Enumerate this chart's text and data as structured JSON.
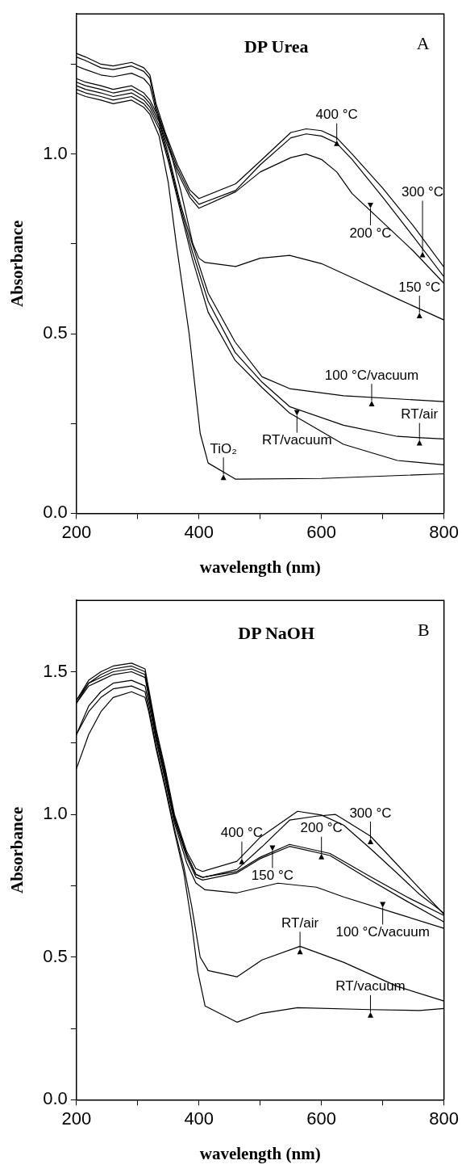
{
  "chart_data": [
    {
      "type": "line",
      "title": "DP Urea",
      "xlabel": "wavelength (nm)",
      "ylabel": "Absorbance",
      "xlim": [
        200,
        800
      ],
      "ylim": [
        0,
        1.39
      ],
      "xticks": [
        200,
        {
          "value": 300,
          "label": null
        },
        400,
        {
          "value": 500,
          "label": null
        },
        600,
        {
          "value": 700,
          "label": null
        },
        800
      ],
      "yticks": [
        {
          "value": 0,
          "label": "0.0"
        },
        {
          "value": 0.25,
          "label": null
        },
        {
          "value": 0.5,
          "label": "0.5"
        },
        {
          "value": 0.75,
          "label": null
        },
        {
          "value": 1,
          "label": "1.0"
        },
        {
          "value": 1.25,
          "label": null
        }
      ],
      "grid": false,
      "legend": false,
      "marker": "none",
      "line_style": "solid",
      "series": [
        {
          "color": "#000000",
          "x": [
            200,
            215,
            240,
            260,
            290,
            310,
            320,
            330,
            345,
            365,
            385,
            400,
            460,
            500,
            550,
            575,
            600,
            625,
            650,
            700,
            750,
            800
          ],
          "values": [
            1.28,
            1.27,
            1.25,
            1.245,
            1.255,
            1.24,
            1.22,
            1.14,
            1.06,
            0.97,
            0.9,
            0.876,
            0.917,
            0.98,
            1.06,
            1.07,
            1.065,
            1.045,
            1.0,
            0.905,
            0.8,
            0.685
          ]
        },
        {
          "color": "#000000",
          "x": [
            200,
            215,
            240,
            260,
            290,
            310,
            320,
            330,
            345,
            365,
            385,
            400,
            460,
            500,
            550,
            575,
            600,
            625,
            650,
            700,
            750,
            800
          ],
          "values": [
            1.27,
            1.26,
            1.24,
            1.235,
            1.245,
            1.23,
            1.21,
            1.13,
            1.05,
            0.96,
            0.89,
            0.86,
            0.899,
            0.97,
            1.045,
            1.056,
            1.05,
            1.03,
            0.985,
            0.88,
            0.77,
            0.658
          ]
        },
        {
          "color": "#000000",
          "x": [
            200,
            215,
            240,
            260,
            290,
            310,
            320,
            330,
            345,
            365,
            385,
            400,
            460,
            500,
            550,
            575,
            600,
            625,
            650,
            700,
            750,
            800
          ],
          "values": [
            1.245,
            1.235,
            1.22,
            1.215,
            1.225,
            1.21,
            1.19,
            1.12,
            1.04,
            0.95,
            0.88,
            0.849,
            0.895,
            0.95,
            0.99,
            1.0,
            0.985,
            0.95,
            0.89,
            0.81,
            0.73,
            0.64
          ]
        },
        {
          "color": "#000000",
          "x": [
            200,
            215,
            240,
            260,
            290,
            310,
            320,
            335,
            350,
            370,
            390,
            400,
            410,
            460,
            500,
            548,
            600,
            654,
            724,
            800
          ],
          "values": [
            1.21,
            1.2,
            1.19,
            1.18,
            1.19,
            1.17,
            1.15,
            1.1,
            1.03,
            0.9,
            0.75,
            0.71,
            0.698,
            0.687,
            0.71,
            0.718,
            0.695,
            0.653,
            0.597,
            0.538
          ]
        },
        {
          "color": "#000000",
          "x": [
            200,
            215,
            240,
            260,
            290,
            310,
            320,
            335,
            350,
            370,
            389,
            415,
            459,
            503,
            548,
            636,
            800
          ],
          "values": [
            1.2,
            1.19,
            1.18,
            1.17,
            1.18,
            1.16,
            1.14,
            1.09,
            1.0,
            0.86,
            0.75,
            0.613,
            0.477,
            0.38,
            0.347,
            0.327,
            0.311
          ]
        },
        {
          "color": "#000000",
          "x": [
            200,
            215,
            240,
            260,
            290,
            310,
            320,
            335,
            350,
            370,
            389,
            415,
            459,
            503,
            548,
            636,
            724,
            800
          ],
          "values": [
            1.19,
            1.18,
            1.17,
            1.16,
            1.17,
            1.15,
            1.13,
            1.08,
            0.99,
            0.85,
            0.73,
            0.59,
            0.448,
            0.365,
            0.297,
            0.245,
            0.214,
            0.207
          ]
        },
        {
          "color": "#000000",
          "x": [
            200,
            215,
            240,
            260,
            290,
            310,
            320,
            335,
            350,
            370,
            389,
            415,
            459,
            503,
            548,
            636,
            724,
            800
          ],
          "values": [
            1.18,
            1.17,
            1.16,
            1.15,
            1.16,
            1.14,
            1.12,
            1.07,
            0.98,
            0.84,
            0.71,
            0.56,
            0.426,
            0.35,
            0.279,
            0.192,
            0.147,
            0.135
          ]
        },
        {
          "color": "#000000",
          "x": [
            200,
            215,
            240,
            260,
            290,
            310,
            320,
            335,
            350,
            363,
            384,
            402,
            415,
            460,
            600,
            800
          ],
          "values": [
            1.17,
            1.16,
            1.15,
            1.14,
            1.15,
            1.13,
            1.11,
            1.05,
            0.92,
            0.75,
            0.5,
            0.223,
            0.14,
            0.095,
            0.097,
            0.11
          ]
        }
      ],
      "annotations": [
        "A",
        {
          "text": "400 °C",
          "x": 625,
          "y": 1.045
        },
        {
          "text": "300 °C",
          "x": 765,
          "y": 0.735
        },
        {
          "text": "200 °C",
          "x": 680,
          "y": 0.842
        },
        {
          "text": "150 °C",
          "x": 760,
          "y": 0.565
        },
        {
          "text": "100 °C/vacuum",
          "x": 682,
          "y": 0.32
        },
        {
          "text": "RT/air",
          "x": 760,
          "y": 0.211
        },
        {
          "text": "RT/vacuum",
          "x": 560,
          "y": 0.265
        },
        {
          "text": "TiO₂",
          "x": 440,
          "y": 0.115
        }
      ]
    },
    {
      "type": "line",
      "title": "DP NaOH",
      "xlabel": "wavelength (nm)",
      "ylabel": "Absorbance",
      "xlim": [
        200,
        800
      ],
      "ylim": [
        0,
        1.75
      ],
      "xticks": [
        200,
        {
          "value": 300,
          "label": null
        },
        400,
        {
          "value": 500,
          "label": null
        },
        600,
        {
          "value": 700,
          "label": null
        },
        800
      ],
      "yticks": [
        {
          "value": 0,
          "label": "0.0"
        },
        {
          "value": 0.25,
          "label": null
        },
        {
          "value": 0.5,
          "label": "0.5"
        },
        {
          "value": 0.75,
          "label": null
        },
        {
          "value": 1,
          "label": "1.0"
        },
        {
          "value": 1.25,
          "label": null
        },
        {
          "value": 1.5,
          "label": "1.5"
        }
      ],
      "grid": false,
      "legend": false,
      "marker": "none",
      "line_style": "solid",
      "series": [
        {
          "color": "#000000",
          "x": [
            200,
            220,
            240,
            260,
            290,
            312,
            318,
            330,
            345,
            360,
            380,
            395,
            406,
            462,
            500,
            561,
            600,
            636,
            680,
            724,
            760,
            800
          ],
          "values": [
            1.4,
            1.47,
            1.5,
            1.52,
            1.53,
            1.51,
            1.44,
            1.3,
            1.16,
            1.0,
            0.87,
            0.81,
            0.8,
            0.836,
            0.92,
            1.011,
            0.998,
            0.963,
            0.88,
            0.793,
            0.72,
            0.654
          ]
        },
        {
          "color": "#000000",
          "x": [
            200,
            220,
            240,
            260,
            290,
            312,
            318,
            330,
            345,
            360,
            380,
            395,
            406,
            462,
            503,
            548,
            592,
            623,
            680,
            746,
            800
          ],
          "values": [
            1.39,
            1.46,
            1.49,
            1.51,
            1.52,
            1.5,
            1.43,
            1.29,
            1.15,
            0.99,
            0.86,
            0.79,
            0.779,
            0.807,
            0.887,
            0.98,
            0.994,
            1.0,
            0.924,
            0.773,
            0.65
          ]
        },
        {
          "color": "#000000",
          "x": [
            200,
            220,
            240,
            260,
            290,
            312,
            318,
            330,
            345,
            360,
            380,
            395,
            406,
            462,
            500,
            548,
            614,
            680,
            740,
            800
          ],
          "values": [
            1.4,
            1.46,
            1.48,
            1.5,
            1.51,
            1.49,
            1.42,
            1.28,
            1.14,
            0.99,
            0.86,
            0.79,
            0.78,
            0.8,
            0.85,
            0.895,
            0.863,
            0.782,
            0.71,
            0.646
          ]
        },
        {
          "color": "#000000",
          "x": [
            200,
            220,
            240,
            260,
            290,
            312,
            318,
            330,
            345,
            360,
            380,
            395,
            406,
            462,
            500,
            548,
            614,
            680,
            740,
            800
          ],
          "values": [
            1.39,
            1.45,
            1.47,
            1.49,
            1.5,
            1.48,
            1.41,
            1.27,
            1.13,
            0.98,
            0.85,
            0.78,
            0.77,
            0.795,
            0.845,
            0.888,
            0.856,
            0.77,
            0.695,
            0.623
          ]
        },
        {
          "color": "#000000",
          "x": [
            200,
            220,
            240,
            260,
            290,
            312,
            318,
            330,
            345,
            360,
            380,
            395,
            410,
            462,
            529,
            592,
            636,
            724,
            800
          ],
          "values": [
            1.28,
            1.38,
            1.43,
            1.46,
            1.47,
            1.45,
            1.39,
            1.26,
            1.12,
            0.97,
            0.83,
            0.76,
            0.736,
            0.725,
            0.759,
            0.745,
            0.711,
            0.652,
            0.601
          ]
        },
        {
          "color": "#000000",
          "x": [
            200,
            220,
            240,
            260,
            290,
            312,
            318,
            330,
            345,
            360,
            375,
            388,
            402,
            415,
            462,
            503,
            565,
            636,
            724,
            800
          ],
          "values": [
            1.28,
            1.36,
            1.41,
            1.44,
            1.45,
            1.43,
            1.37,
            1.24,
            1.1,
            0.95,
            0.82,
            0.68,
            0.5,
            0.453,
            0.431,
            0.49,
            0.538,
            0.482,
            0.397,
            0.346
          ]
        },
        {
          "color": "#000000",
          "x": [
            200,
            220,
            240,
            260,
            290,
            312,
            318,
            330,
            345,
            360,
            375,
            388,
            398,
            410,
            462,
            500,
            561,
            680,
            760,
            800
          ],
          "values": [
            1.16,
            1.28,
            1.36,
            1.41,
            1.43,
            1.41,
            1.36,
            1.23,
            1.09,
            0.94,
            0.8,
            0.62,
            0.45,
            0.329,
            0.272,
            0.302,
            0.323,
            0.316,
            0.313,
            0.32
          ]
        }
      ],
      "annotations": [
        "B",
        {
          "text": "400 °C",
          "x": 470,
          "y": 0.854
        },
        {
          "text": "300 °C",
          "x": 680,
          "y": 0.924
        },
        {
          "text": "200 °C",
          "x": 600,
          "y": 0.871
        },
        {
          "text": "150 °C",
          "x": 520,
          "y": 0.863
        },
        {
          "text": "100 °C/vacuum",
          "x": 700,
          "y": 0.665
        },
        {
          "text": "RT/air",
          "x": 565,
          "y": 0.538
        },
        {
          "text": "RT/vacuum",
          "x": 680,
          "y": 0.316
        }
      ]
    }
  ]
}
